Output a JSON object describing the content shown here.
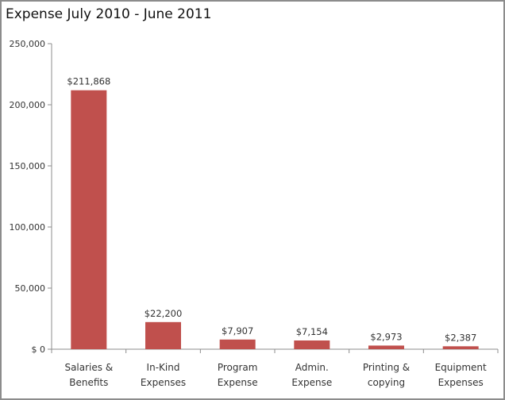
{
  "chart_data": {
    "type": "bar",
    "title": "Expense July 2010 - June 2011",
    "xlabel": "",
    "ylabel": "",
    "ylim": [
      0,
      250000
    ],
    "grid": false,
    "legend": "none",
    "categories": [
      [
        "Salaries &",
        "Benefits"
      ],
      [
        "In-Kind",
        "Expenses"
      ],
      [
        "Program",
        "Expense"
      ],
      [
        "Admin.",
        "Expense"
      ],
      [
        "Printing &",
        "copying"
      ],
      [
        "Equipment",
        "Expenses"
      ]
    ],
    "values": [
      211868,
      22200,
      7907,
      7154,
      2973,
      2387
    ],
    "data_labels": [
      "$211,868",
      "$22,200",
      "$7,907",
      "$7,154",
      "$2,973",
      "$2,387"
    ],
    "yticks": [
      0,
      50000,
      100000,
      150000,
      200000,
      250000
    ],
    "ytick_labels": [
      "$ 0",
      "50,000",
      "100,000",
      "150,000",
      "200,000",
      "250,000"
    ],
    "bar_color": "#c0504d"
  }
}
